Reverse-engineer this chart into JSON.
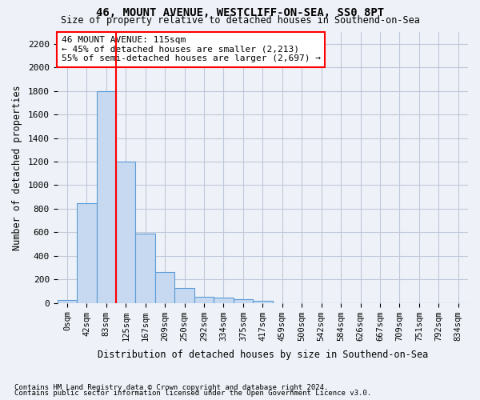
{
  "title1": "46, MOUNT AVENUE, WESTCLIFF-ON-SEA, SS0 8PT",
  "title2": "Size of property relative to detached houses in Southend-on-Sea",
  "xlabel": "Distribution of detached houses by size in Southend-on-Sea",
  "ylabel": "Number of detached properties",
  "footnote1": "Contains HM Land Registry data © Crown copyright and database right 2024.",
  "footnote2": "Contains public sector information licensed under the Open Government Licence v3.0.",
  "bar_values": [
    25,
    850,
    1800,
    1200,
    590,
    260,
    125,
    50,
    45,
    30,
    15,
    0,
    0,
    0,
    0,
    0,
    0,
    0,
    0,
    0,
    0
  ],
  "bin_labels": [
    "0sqm",
    "42sqm",
    "83sqm",
    "125sqm",
    "167sqm",
    "209sqm",
    "250sqm",
    "292sqm",
    "334sqm",
    "375sqm",
    "417sqm",
    "459sqm",
    "500sqm",
    "542sqm",
    "584sqm",
    "626sqm",
    "667sqm",
    "709sqm",
    "751sqm",
    "792sqm",
    "834sqm"
  ],
  "bar_color": "#c6d9f0",
  "bar_edge_color": "#5b9bd5",
  "grid_color": "#c0c8d8",
  "vline_x": 2.5,
  "vline_color": "red",
  "annotation_text": "46 MOUNT AVENUE: 115sqm\n← 45% of detached houses are smaller (2,213)\n55% of semi-detached houses are larger (2,697) →",
  "annotation_box_color": "white",
  "annotation_box_edge": "red",
  "ylim": [
    0,
    2300
  ],
  "yticks": [
    0,
    200,
    400,
    600,
    800,
    1000,
    1200,
    1400,
    1600,
    1800,
    2000,
    2200
  ],
  "background_color": "#eef2f8"
}
